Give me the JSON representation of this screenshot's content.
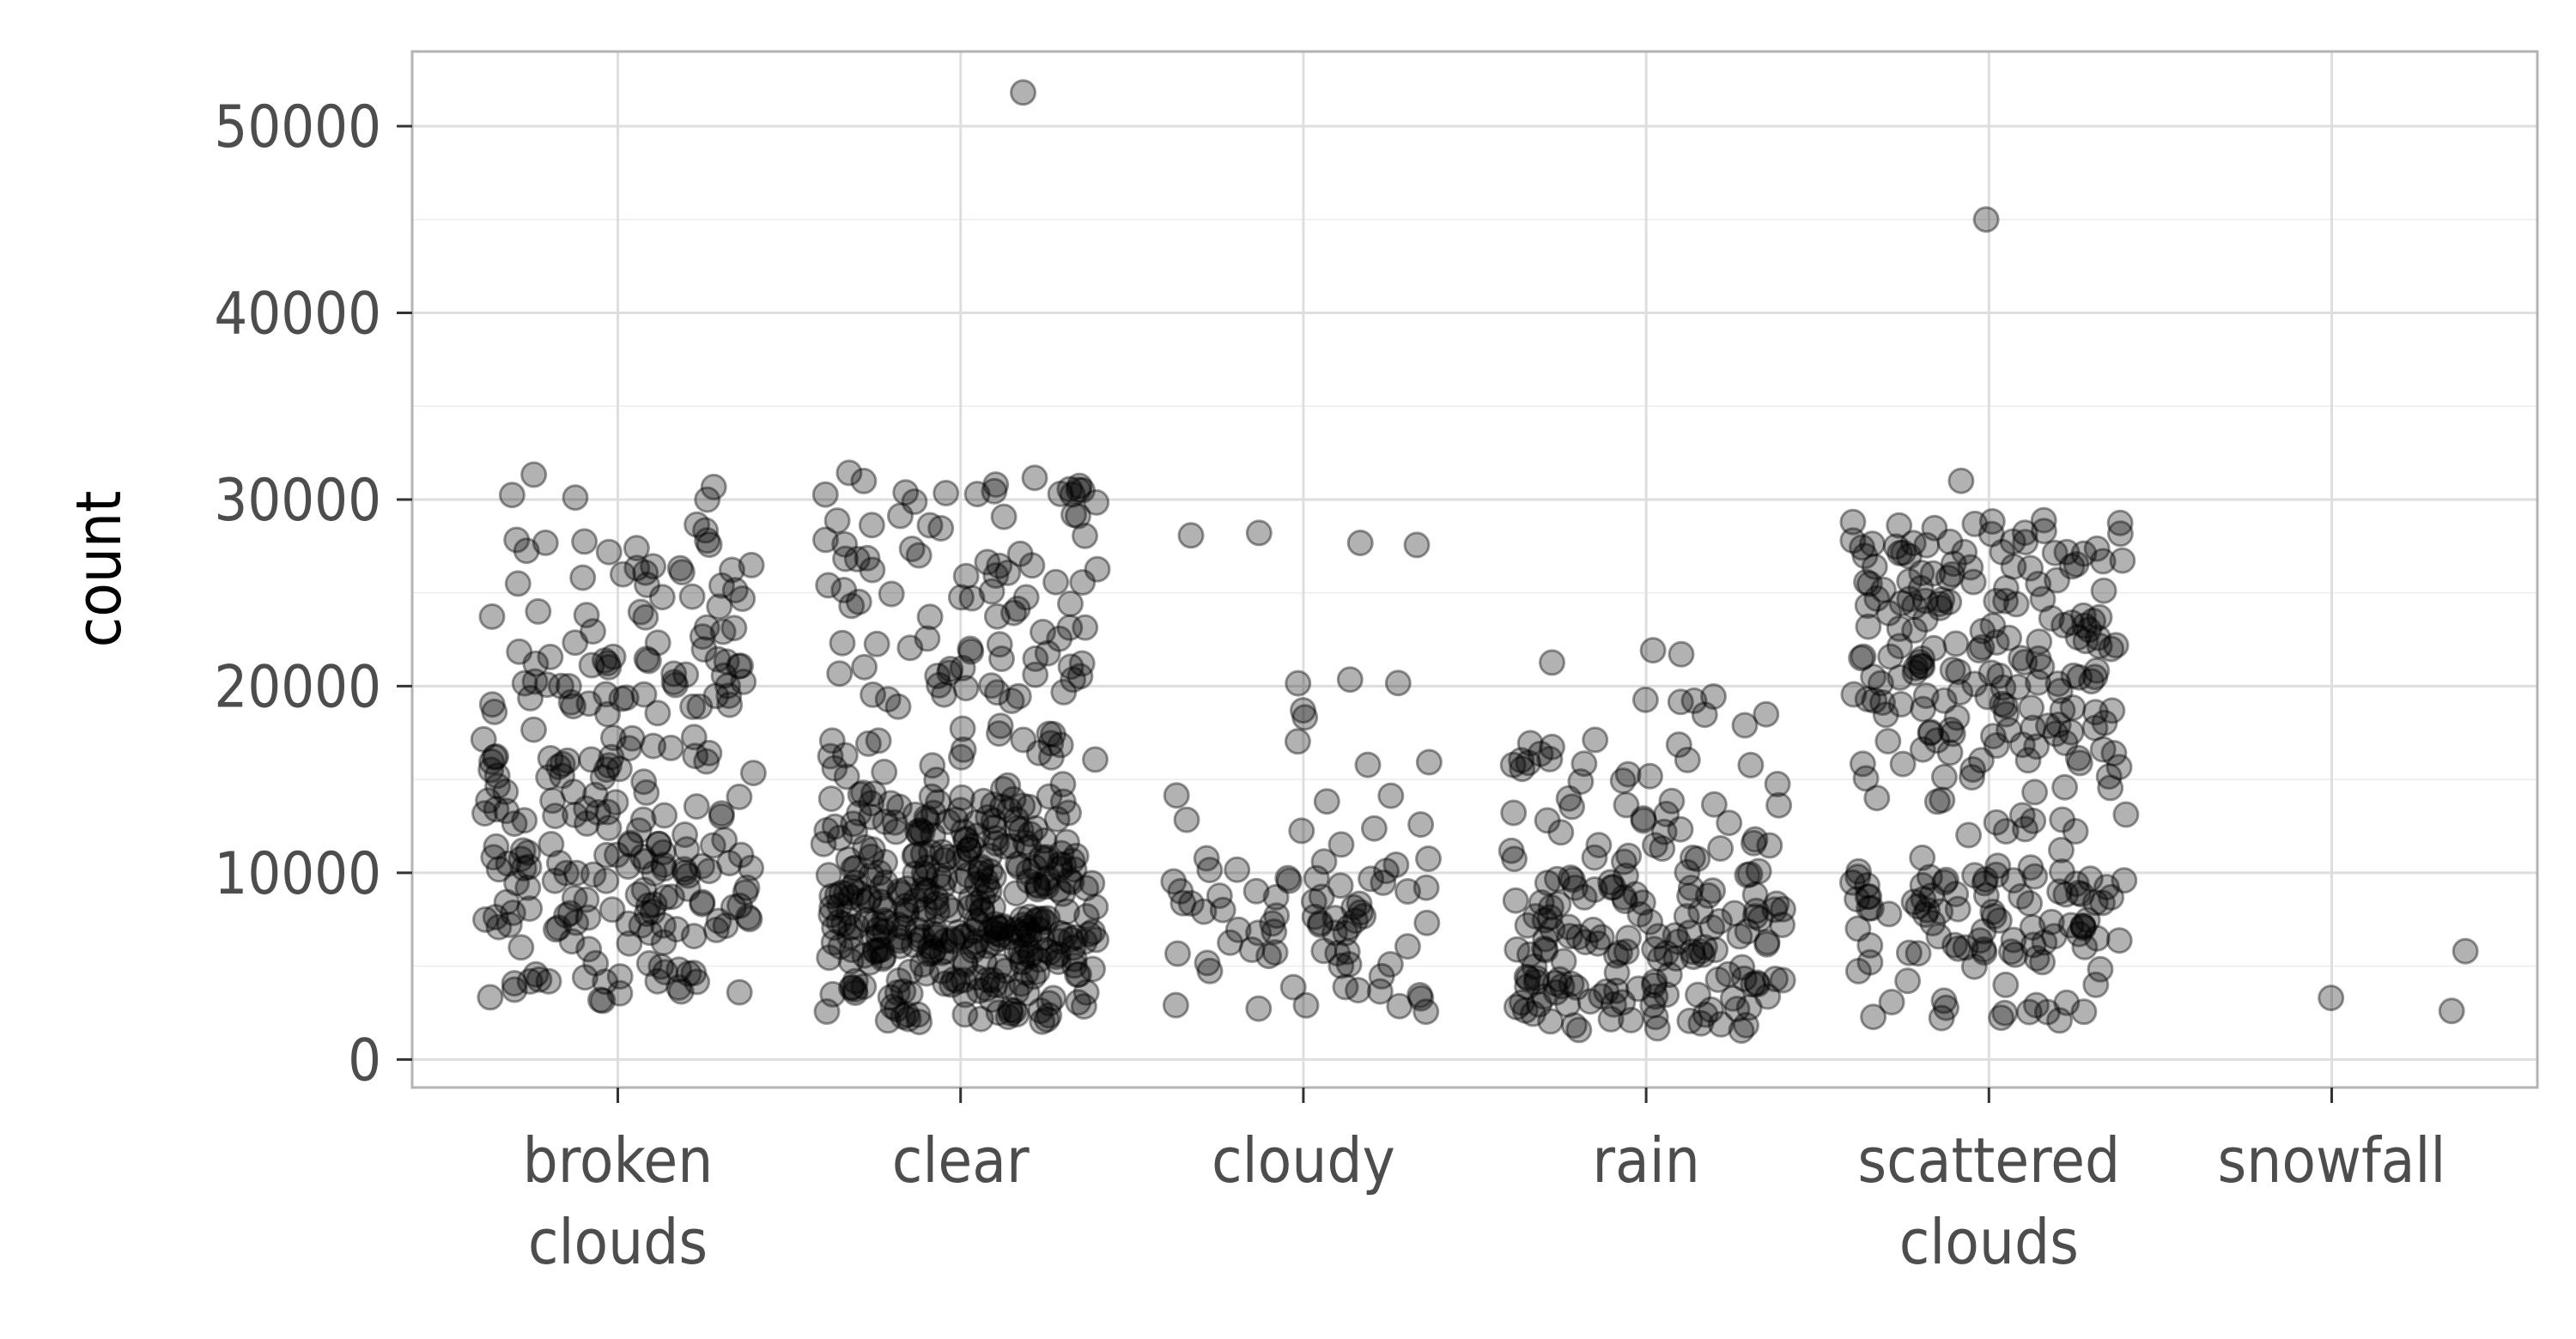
{
  "chart_data": {
    "type": "scatter",
    "subtype": "jitter",
    "title": "",
    "xlabel": "",
    "ylabel": "count",
    "ylim": [
      -1500,
      54000
    ],
    "yticks": [
      0,
      10000,
      20000,
      30000,
      40000,
      50000
    ],
    "grid": true,
    "legend": "none",
    "point_color": "#000000",
    "point_opacity": 0.3,
    "categories": [
      {
        "key": "broken_clouds",
        "lines": [
          "broken",
          "clouds"
        ]
      },
      {
        "key": "clear",
        "lines": [
          "clear"
        ]
      },
      {
        "key": "cloudy",
        "lines": [
          "cloudy"
        ]
      },
      {
        "key": "rain",
        "lines": [
          "rain"
        ]
      },
      {
        "key": "scattered_clouds",
        "lines": [
          "scattered",
          "clouds"
        ]
      },
      {
        "key": "snowfall",
        "lines": [
          "snowfall"
        ]
      }
    ],
    "series": [
      {
        "category": "broken_clouds",
        "count": 260,
        "ymin": 800,
        "ymax": 31500,
        "distribution": [
          [
            3000,
            7000,
            0.15
          ],
          [
            7000,
            12000,
            0.28
          ],
          [
            12000,
            17000,
            0.18
          ],
          [
            17000,
            22000,
            0.2
          ],
          [
            22000,
            28000,
            0.17
          ],
          [
            28000,
            31500,
            0.02
          ]
        ]
      },
      {
        "category": "clear",
        "count": 480,
        "ymin": 1000,
        "ymax": 52000,
        "distribution": [
          [
            2000,
            5000,
            0.14
          ],
          [
            5000,
            9000,
            0.3
          ],
          [
            9000,
            14000,
            0.28
          ],
          [
            14000,
            20000,
            0.1
          ],
          [
            20000,
            26000,
            0.1
          ],
          [
            26000,
            31500,
            0.08
          ]
        ],
        "outliers": [
          51800
        ]
      },
      {
        "category": "cloudy",
        "count": 90,
        "ymin": 2500,
        "ymax": 29000,
        "distribution": [
          [
            2500,
            6000,
            0.25
          ],
          [
            6000,
            10000,
            0.42
          ],
          [
            10000,
            14000,
            0.12
          ],
          [
            14000,
            20500,
            0.18
          ],
          [
            27000,
            29000,
            0.03
          ]
        ]
      },
      {
        "category": "rain",
        "count": 200,
        "ymin": 1500,
        "ymax": 22500,
        "distribution": [
          [
            1500,
            5000,
            0.28
          ],
          [
            5000,
            9000,
            0.34
          ],
          [
            9000,
            13000,
            0.18
          ],
          [
            13000,
            18000,
            0.15
          ],
          [
            18000,
            22500,
            0.05
          ]
        ]
      },
      {
        "category": "scattered_clouds",
        "count": 300,
        "ymin": 2000,
        "ymax": 45000,
        "distribution": [
          [
            2000,
            6000,
            0.1
          ],
          [
            6000,
            10000,
            0.2
          ],
          [
            10000,
            15000,
            0.13
          ],
          [
            15000,
            20000,
            0.17
          ],
          [
            20000,
            25000,
            0.22
          ],
          [
            25000,
            29000,
            0.18
          ]
        ],
        "outliers": [
          45000,
          31000
        ]
      },
      {
        "category": "snowfall",
        "values": [
          3300,
          2600,
          5800
        ],
        "offsets": [
          -0.002,
          0.35,
          0.39
        ]
      }
    ]
  }
}
